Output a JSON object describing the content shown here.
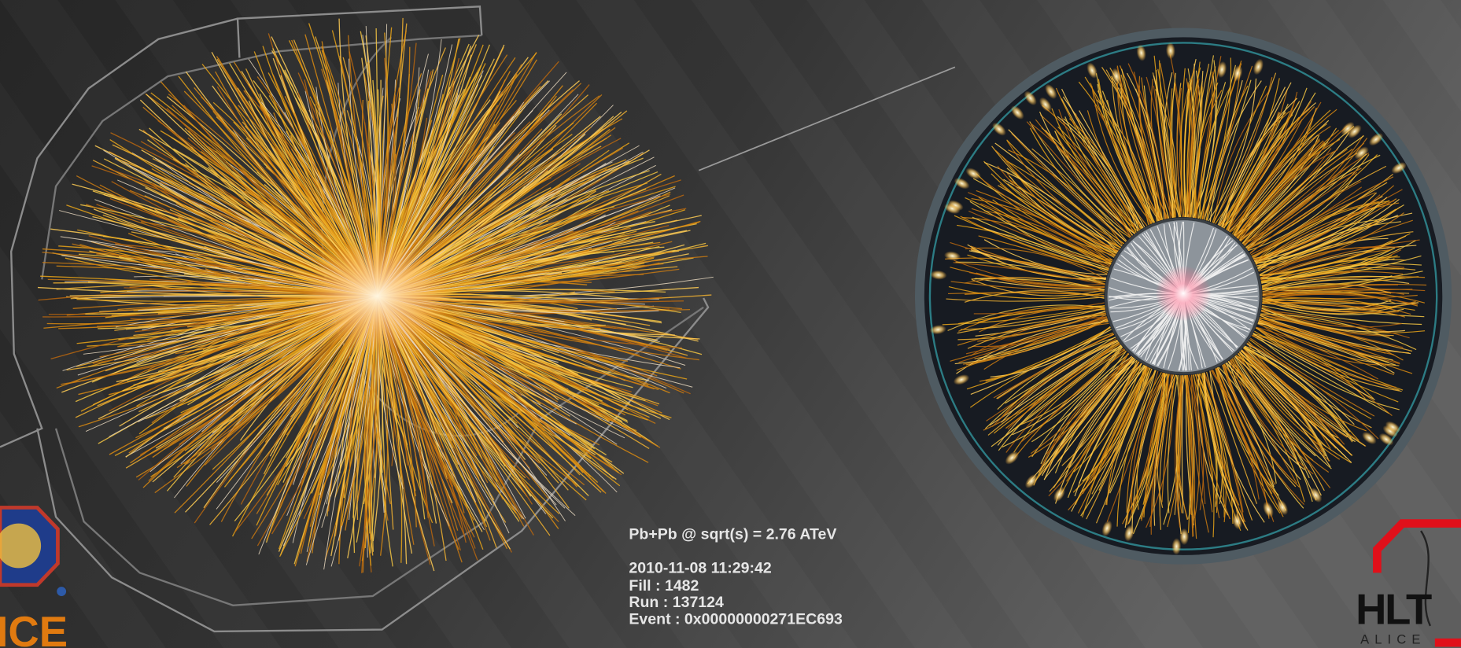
{
  "event_info": {
    "collision": "Pb+Pb @ sqrt(s) = 2.76 ATeV",
    "timestamp": "2010-11-08 11:29:42",
    "fill": "Fill : 1482",
    "run": "Run : 137124",
    "event": "Event : 0x00000000271EC693"
  },
  "logos": {
    "alice": "ICE",
    "hlt": "HLT",
    "hlt_sub": "ALICE"
  }
}
